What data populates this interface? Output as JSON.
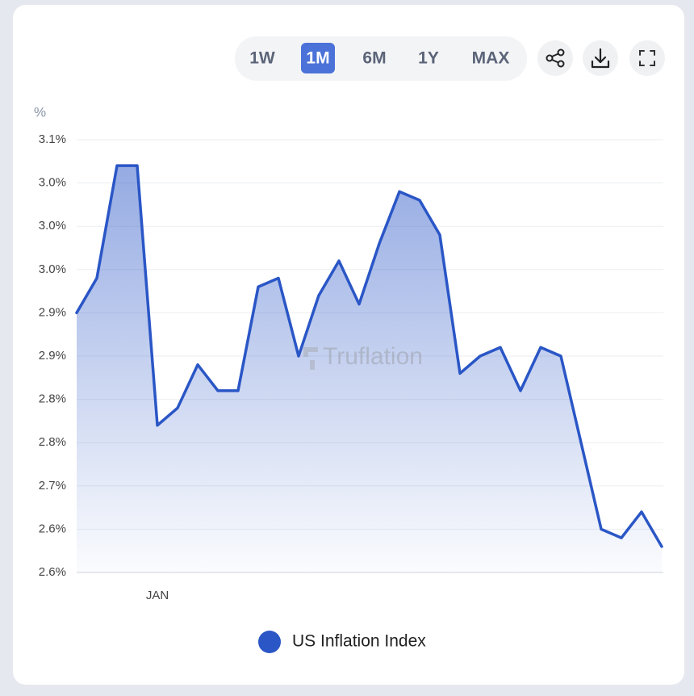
{
  "chart_data": {
    "type": "line",
    "unit_label": "%",
    "watermark": "Truflation",
    "categories": [
      null,
      null,
      null,
      null,
      "JAN",
      null,
      null,
      null,
      null,
      null,
      null,
      null,
      null,
      null,
      null,
      null,
      null,
      null,
      null,
      null,
      null,
      null,
      null,
      null,
      null,
      null,
      null,
      null,
      null,
      null
    ],
    "series": [
      {
        "name": "US Inflation Index",
        "color": "#2a56c6",
        "values": [
          2.9,
          2.94,
          3.07,
          3.07,
          2.77,
          2.79,
          2.84,
          2.81,
          2.81,
          2.93,
          2.94,
          2.85,
          2.92,
          2.96,
          2.91,
          2.98,
          3.04,
          3.03,
          2.99,
          2.83,
          2.85,
          2.86,
          2.81,
          2.86,
          2.85,
          2.75,
          2.65,
          2.64,
          2.67,
          2.63
        ]
      }
    ],
    "ylim": [
      2.6,
      3.1
    ],
    "yticks": [
      {
        "value": 2.6,
        "label": "2.6%"
      },
      {
        "value": 2.65,
        "label": "2.6%"
      },
      {
        "value": 2.7,
        "label": "2.7%"
      },
      {
        "value": 2.75,
        "label": "2.8%"
      },
      {
        "value": 2.8,
        "label": "2.8%"
      },
      {
        "value": 2.85,
        "label": "2.9%"
      },
      {
        "value": 2.9,
        "label": "2.9%"
      },
      {
        "value": 2.95,
        "label": "3.0%"
      },
      {
        "value": 3.0,
        "label": "3.0%"
      },
      {
        "value": 3.05,
        "label": "3.0%"
      },
      {
        "value": 3.1,
        "label": "3.1%"
      }
    ],
    "grid": true,
    "area_fill": true,
    "legend": "bottom"
  },
  "controls": {
    "ranges": [
      "1W",
      "1M",
      "6M",
      "1Y",
      "MAX"
    ],
    "selected_range": "1M"
  }
}
